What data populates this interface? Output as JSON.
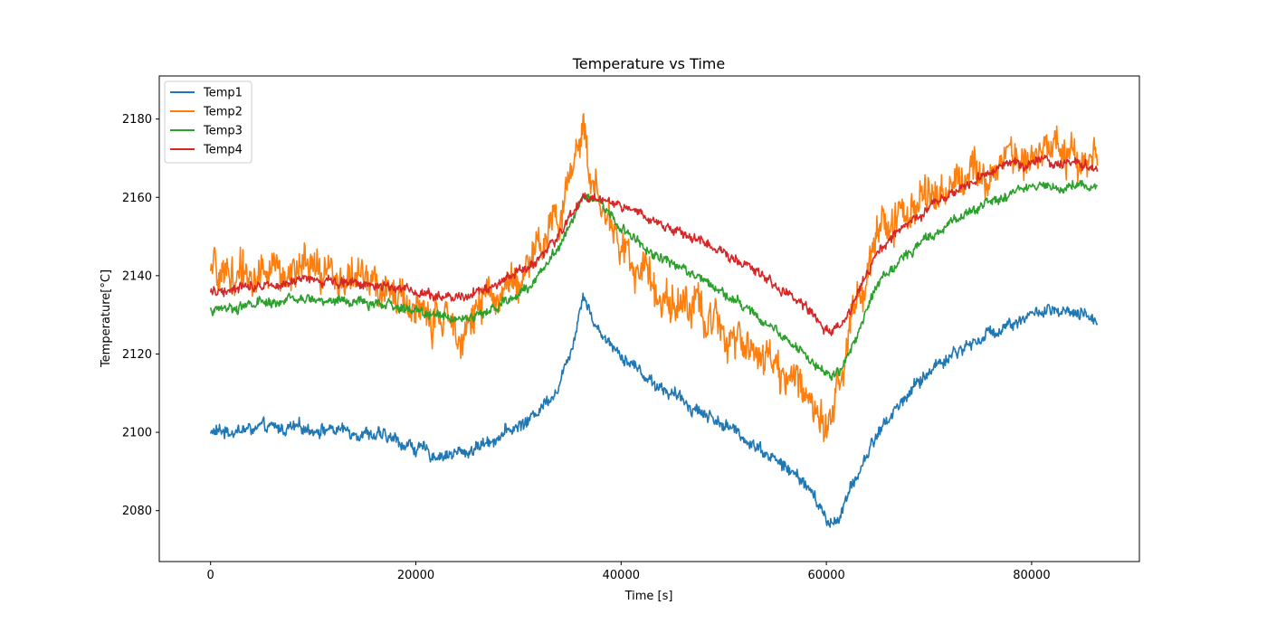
{
  "chart_data": {
    "type": "line",
    "title": "Temperature vs Time",
    "xlabel": "Time [s]",
    "ylabel": "Temperature[°C]",
    "xlim": [
      -5000,
      90500
    ],
    "ylim": [
      2067,
      2191
    ],
    "xticks": [
      0,
      20000,
      40000,
      60000,
      80000
    ],
    "yticks": [
      2080,
      2100,
      2120,
      2140,
      2160,
      2180
    ],
    "grid": false,
    "legend_position": "top-left",
    "series": [
      {
        "name": "Temp1",
        "color": "#1f77b4",
        "noise": 1.6,
        "x": [
          0,
          5000,
          10000,
          15000,
          18000,
          20000,
          22000,
          25000,
          28000,
          31000,
          34000,
          35500,
          36300,
          37500,
          40000,
          43000,
          46000,
          50000,
          53000,
          56000,
          58000,
          59500,
          60500,
          61500,
          63000,
          65000,
          68000,
          71000,
          75000,
          78000,
          81000,
          84000,
          86400
        ],
        "y": [
          2100,
          2101,
          2101,
          2100,
          2098,
          2096,
          2094,
          2095,
          2099,
          2103,
          2112,
          2125,
          2136,
          2127,
          2120,
          2113,
          2108,
          2102,
          2097,
          2091,
          2087,
          2080,
          2076,
          2080,
          2089,
          2100,
          2110,
          2118,
          2124,
          2128,
          2131,
          2130,
          2129
        ]
      },
      {
        "name": "Temp2",
        "color": "#ff7f0e",
        "noise": 5,
        "x": [
          0,
          5000,
          10000,
          15000,
          18000,
          20000,
          22000,
          25000,
          28000,
          31000,
          34000,
          35500,
          36300,
          37500,
          40000,
          43000,
          46000,
          50000,
          53000,
          56000,
          58000,
          59500,
          60500,
          61500,
          63000,
          65000,
          68000,
          71000,
          75000,
          78000,
          81000,
          84000,
          86400
        ],
        "y": [
          2140,
          2141,
          2141,
          2139,
          2135,
          2131,
          2128,
          2128,
          2136,
          2142,
          2155,
          2172,
          2178,
          2160,
          2148,
          2138,
          2133,
          2127,
          2122,
          2114,
          2110,
          2106,
          2106,
          2115,
          2135,
          2150,
          2157,
          2163,
          2167,
          2170,
          2172,
          2171,
          2170
        ]
      },
      {
        "name": "Temp3",
        "color": "#2ca02c",
        "noise": 1.2,
        "x": [
          0,
          5000,
          10000,
          15000,
          18000,
          20000,
          22000,
          25000,
          28000,
          31000,
          34000,
          35500,
          36300,
          37500,
          40000,
          43000,
          46000,
          50000,
          53000,
          56000,
          58000,
          59500,
          60500,
          61500,
          63000,
          65000,
          68000,
          71000,
          75000,
          78000,
          81000,
          84000,
          86400
        ],
        "y": [
          2131,
          2133,
          2134,
          2133,
          2132,
          2131,
          2130,
          2129,
          2132,
          2137,
          2148,
          2156,
          2161,
          2160,
          2152,
          2146,
          2142,
          2136,
          2130,
          2124,
          2120,
          2116,
          2114,
          2116,
          2125,
          2138,
          2146,
          2152,
          2158,
          2161,
          2163,
          2163,
          2162
        ]
      },
      {
        "name": "Temp4",
        "color": "#d62728",
        "noise": 1.2,
        "x": [
          0,
          5000,
          10000,
          15000,
          18000,
          20000,
          22000,
          25000,
          28000,
          31000,
          34000,
          35500,
          36300,
          37500,
          40000,
          43000,
          46000,
          50000,
          53000,
          56000,
          58000,
          59500,
          60500,
          61500,
          63000,
          65000,
          68000,
          71000,
          75000,
          78000,
          81000,
          84000,
          86400
        ],
        "y": [
          2136,
          2138,
          2139,
          2138,
          2137,
          2136,
          2135,
          2135,
          2138,
          2142,
          2150,
          2157,
          2160,
          2160,
          2158,
          2154,
          2151,
          2146,
          2141,
          2136,
          2132,
          2127,
          2125,
          2127,
          2135,
          2146,
          2153,
          2159,
          2165,
          2168,
          2169,
          2169,
          2168
        ]
      }
    ]
  }
}
